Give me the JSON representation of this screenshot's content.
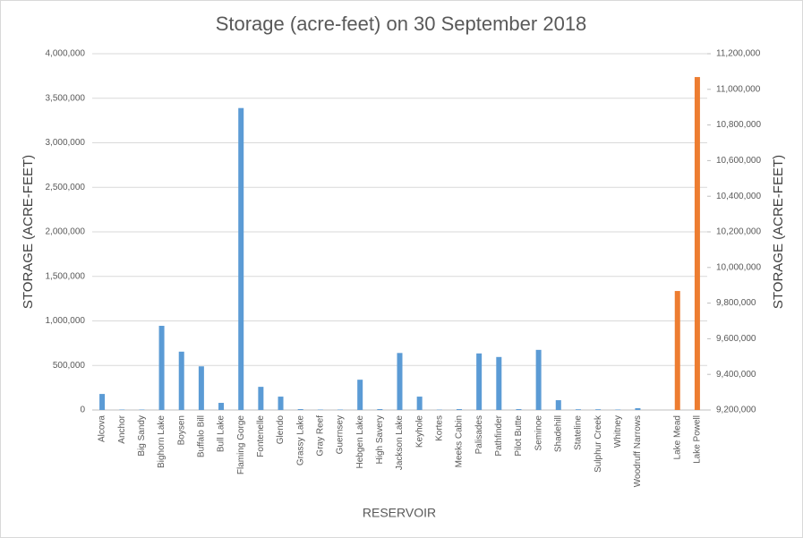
{
  "chart_data": {
    "type": "bar",
    "title": "Storage (acre-feet) on 30 September 2018",
    "x_label": "RESERVOIR",
    "y_label": "STORAGE (ACRE-FEET)",
    "y2_label": "STORAGE (ACRE-FEET)",
    "categories": [
      "Alcova",
      "Anchor",
      "Big Sandy",
      "Bighorn Lake",
      "Boysen",
      "Buffalo Bill",
      "Bull Lake",
      "Flaming Gorge",
      "Fontenelle",
      "Glendo",
      "Grassy Lake",
      "Gray Reef",
      "Guernsey",
      "Hebgen Lake",
      "High Savery",
      "Jackson Lake",
      "Keyhole",
      "Kortes",
      "Meeks Cabin",
      "Palisades",
      "Pathfinder",
      "Pilot Butte",
      "Seminoe",
      "Shadehill",
      "Stateline",
      "Sulphur Creek",
      "Whitney",
      "Woodruff Narrows",
      null,
      "Lake Mead",
      "Lake Powell"
    ],
    "series": [
      {
        "color": "#5b9bd5",
        "axis": "y",
        "values": [
          180000,
          5000,
          5000,
          945000,
          655000,
          490000,
          80000,
          3390000,
          260000,
          150000,
          10000,
          5000,
          5000,
          340000,
          10000,
          640000,
          150000,
          4000,
          10000,
          635000,
          595000,
          10000,
          675000,
          110000,
          8000,
          8000,
          5000,
          20000,
          null,
          null,
          null
        ]
      },
      {
        "color": "#ed7d31",
        "axis": "y2",
        "values": [
          null,
          null,
          null,
          null,
          null,
          null,
          null,
          null,
          null,
          null,
          null,
          null,
          null,
          null,
          null,
          null,
          null,
          null,
          null,
          null,
          null,
          null,
          null,
          null,
          null,
          null,
          null,
          null,
          null,
          9868000,
          11069000
        ]
      }
    ],
    "ylim": [
      0,
      4000000
    ],
    "yticks": [
      0,
      {
        "value": 500000,
        "label": "500,000"
      },
      {
        "value": 1000000,
        "label": "1,000,000"
      },
      {
        "value": 1500000,
        "label": "1,500,000"
      },
      {
        "value": 2000000,
        "label": "2,000,000"
      },
      {
        "value": 2500000,
        "label": "2,500,000"
      },
      {
        "value": 3000000,
        "label": "3,000,000"
      },
      {
        "value": 3500000,
        "label": "3,500,000"
      },
      {
        "value": 4000000,
        "label": "4,000,000"
      }
    ],
    "y2lim": [
      9200000,
      11200000
    ],
    "y2ticks": [
      {
        "value": 9200000,
        "label": "9,200,000"
      },
      {
        "value": 9400000,
        "label": "9,400,000"
      },
      {
        "value": 9600000,
        "label": "9,600,000"
      },
      {
        "value": 9800000,
        "label": "9,800,000"
      },
      {
        "value": 10000000,
        "label": "10,000,000"
      },
      {
        "value": 10200000,
        "label": "10,200,000"
      },
      {
        "value": 10400000,
        "label": "10,400,000"
      },
      {
        "value": 10600000,
        "label": "10,600,000"
      },
      {
        "value": 10800000,
        "label": "10,800,000"
      },
      {
        "value": 11000000,
        "label": "11,000,000"
      },
      {
        "value": 11200000,
        "label": "11,200,000"
      }
    ],
    "grid": true
  }
}
